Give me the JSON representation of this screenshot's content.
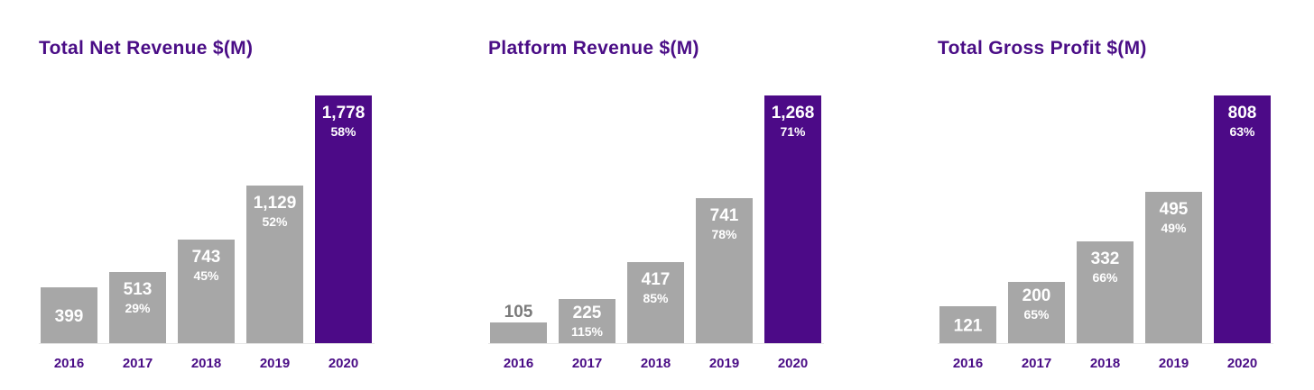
{
  "colors": {
    "past": "#a7a7a7",
    "highlight": "#4c0a87",
    "title": "#4a0d86",
    "tick": "#4a0d86",
    "baseline": "#e6e6e6"
  },
  "chart_data": [
    {
      "type": "bar",
      "title": "Total Net Revenue $(M)",
      "categories": [
        "2016",
        "2017",
        "2018",
        "2019",
        "2020"
      ],
      "values": [
        399,
        513,
        743,
        1129,
        1778
      ],
      "value_labels": [
        "399",
        "513",
        "743",
        "1,129",
        "1,778"
      ],
      "growth_labels": [
        "",
        "29%",
        "45%",
        "52%",
        "58%"
      ],
      "highlight_index": 4,
      "ylim": [
        0,
        1778
      ]
    },
    {
      "type": "bar",
      "title": "Platform Revenue $(M)",
      "categories": [
        "2016",
        "2017",
        "2018",
        "2019",
        "2020"
      ],
      "values": [
        105,
        225,
        417,
        741,
        1268
      ],
      "value_labels": [
        "105",
        "225",
        "417",
        "741",
        "1,268"
      ],
      "growth_labels": [
        "",
        "115%",
        "85%",
        "78%",
        "71%"
      ],
      "highlight_index": 4,
      "ylim": [
        0,
        1268
      ]
    },
    {
      "type": "bar",
      "title": "Total Gross Profit $(M)",
      "categories": [
        "2016",
        "2017",
        "2018",
        "2019",
        "2020"
      ],
      "values": [
        121,
        200,
        332,
        495,
        808
      ],
      "value_labels": [
        "121",
        "200",
        "332",
        "495",
        "808"
      ],
      "growth_labels": [
        "",
        "65%",
        "66%",
        "49%",
        "63%"
      ],
      "highlight_index": 4,
      "ylim": [
        0,
        808
      ]
    }
  ]
}
